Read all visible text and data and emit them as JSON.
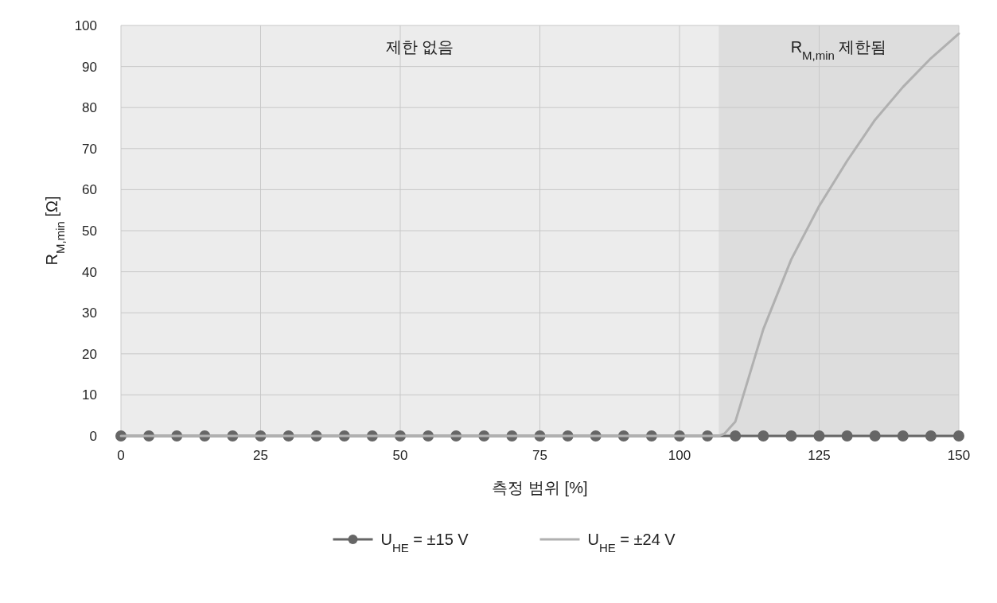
{
  "chart_data": {
    "type": "line",
    "xlabel": "측정 범위 [%]",
    "ylabel": "R$_{M,min}$ [Ω]",
    "x": [
      0,
      5,
      10,
      15,
      20,
      25,
      30,
      35,
      40,
      45,
      50,
      55,
      60,
      65,
      70,
      75,
      80,
      85,
      90,
      95,
      100,
      105,
      110,
      115,
      120,
      125,
      130,
      135,
      140,
      145,
      150
    ],
    "xlim": [
      0,
      150
    ],
    "xticks": [
      0,
      25,
      50,
      75,
      100,
      125,
      150
    ],
    "ylim": [
      0,
      100
    ],
    "yticks": [
      0,
      10,
      20,
      30,
      40,
      50,
      60,
      70,
      80,
      90,
      100
    ],
    "grid": true,
    "legend": "bottom",
    "bands": [
      {
        "axis": "x",
        "from": 0,
        "to": 107,
        "label": "제한 없음",
        "color": "#ececec"
      },
      {
        "axis": "x",
        "from": 107,
        "to": 150,
        "label": "R$_{M,min}$   제한됨",
        "color": "#dddddd"
      }
    ],
    "series": [
      {
        "name": "U$_{HE}$ = ±15 V",
        "color": "#666666",
        "marker": "circle",
        "values": [
          0,
          0,
          0,
          0,
          0,
          0,
          0,
          0,
          0,
          0,
          0,
          0,
          0,
          0,
          0,
          0,
          0,
          0,
          0,
          0,
          0,
          0,
          0,
          0,
          0,
          0,
          0,
          0,
          0,
          0,
          0
        ]
      },
      {
        "name": "U$_{HE}$ = ±24 V",
        "color": "#b0b0b0",
        "marker": "none",
        "x": [
          0,
          107,
          108,
          110,
          115,
          120,
          125,
          130,
          135,
          140,
          145,
          150
        ],
        "values": [
          0,
          0,
          0.5,
          3.5,
          26,
          43,
          56,
          67,
          77,
          85,
          92,
          98
        ]
      }
    ]
  }
}
